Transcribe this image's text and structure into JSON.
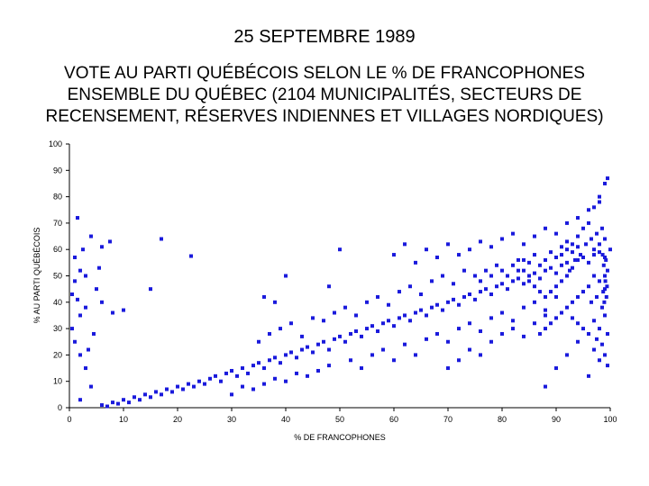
{
  "header": {
    "date": "25 SEPTEMBRE 1989",
    "title_lines": [
      "VOTE AU PARTI QUÉBÉCOIS SELON LE % DE FRANCOPHONES",
      "ENSEMBLE DU QUÉBEC (2104 MUNICIPALITÉS, SECTEURS DE",
      "RECENSEMENT, RÉSERVES INDIENNES ET VILLAGES NORDIQUES)"
    ]
  },
  "chart_data": {
    "type": "scatter",
    "title": "VOTE AU PARTI QUÉBÉCOIS SELON LE % DE FRANCOPHONES",
    "xlabel": "% DE FRANCOPHONES",
    "ylabel": "% AU PARTI QUÉBÉCOIS",
    "xlim": [
      0,
      100
    ],
    "ylim": [
      0,
      100
    ],
    "xticks": [
      0,
      10,
      20,
      30,
      40,
      50,
      60,
      70,
      80,
      90,
      100
    ],
    "yticks": [
      0,
      10,
      20,
      30,
      40,
      50,
      60,
      70,
      80,
      90,
      100
    ],
    "grid": false,
    "marker_color": "#1a1adc",
    "points": [
      [
        1.5,
        72
      ],
      [
        4,
        65
      ],
      [
        6,
        61
      ],
      [
        7.5,
        63
      ],
      [
        5.5,
        53
      ],
      [
        2,
        52
      ],
      [
        1,
        57
      ],
      [
        3,
        50
      ],
      [
        2.5,
        60
      ],
      [
        1,
        48
      ],
      [
        0.5,
        43
      ],
      [
        1.5,
        41
      ],
      [
        3,
        38
      ],
      [
        2,
        35
      ],
      [
        0.5,
        30
      ],
      [
        1,
        25
      ],
      [
        2,
        20
      ],
      [
        3,
        15
      ],
      [
        4,
        8
      ],
      [
        2,
        3
      ],
      [
        5,
        45
      ],
      [
        6,
        40
      ],
      [
        4.5,
        28
      ],
      [
        3.5,
        22
      ],
      [
        8,
        36
      ],
      [
        10,
        37
      ],
      [
        15,
        45
      ],
      [
        17,
        64
      ],
      [
        22.5,
        57.5
      ],
      [
        6,
        1
      ],
      [
        7,
        0.5
      ],
      [
        8,
        2
      ],
      [
        9,
        1.5
      ],
      [
        10,
        3
      ],
      [
        11,
        2
      ],
      [
        12,
        4
      ],
      [
        13,
        3
      ],
      [
        14,
        5
      ],
      [
        15,
        4
      ],
      [
        16,
        6
      ],
      [
        17,
        5
      ],
      [
        18,
        7
      ],
      [
        19,
        6
      ],
      [
        20,
        8
      ],
      [
        21,
        7
      ],
      [
        22,
        9
      ],
      [
        23,
        8
      ],
      [
        24,
        10
      ],
      [
        25,
        9
      ],
      [
        26,
        11
      ],
      [
        27,
        12
      ],
      [
        28,
        10
      ],
      [
        29,
        13
      ],
      [
        30,
        14
      ],
      [
        31,
        12
      ],
      [
        32,
        15
      ],
      [
        33,
        13
      ],
      [
        34,
        16
      ],
      [
        35,
        17
      ],
      [
        36,
        15
      ],
      [
        37,
        18
      ],
      [
        38,
        19
      ],
      [
        39,
        17
      ],
      [
        40,
        20
      ],
      [
        41,
        21
      ],
      [
        42,
        19
      ],
      [
        43,
        22
      ],
      [
        44,
        23
      ],
      [
        45,
        21
      ],
      [
        46,
        24
      ],
      [
        47,
        25
      ],
      [
        48,
        22
      ],
      [
        49,
        26
      ],
      [
        50,
        27
      ],
      [
        51,
        25
      ],
      [
        52,
        28
      ],
      [
        53,
        29
      ],
      [
        54,
        27
      ],
      [
        55,
        30
      ],
      [
        56,
        31
      ],
      [
        57,
        29
      ],
      [
        58,
        32
      ],
      [
        59,
        33
      ],
      [
        60,
        31
      ],
      [
        61,
        34
      ],
      [
        62,
        35
      ],
      [
        63,
        33
      ],
      [
        64,
        36
      ],
      [
        65,
        37
      ],
      [
        66,
        35
      ],
      [
        67,
        38
      ],
      [
        68,
        39
      ],
      [
        69,
        37
      ],
      [
        70,
        40
      ],
      [
        71,
        41
      ],
      [
        72,
        39
      ],
      [
        73,
        42
      ],
      [
        74,
        43
      ],
      [
        75,
        41
      ],
      [
        76,
        44
      ],
      [
        77,
        45
      ],
      [
        78,
        43
      ],
      [
        79,
        46
      ],
      [
        80,
        47
      ],
      [
        81,
        45
      ],
      [
        82,
        48
      ],
      [
        83,
        49
      ],
      [
        84,
        47
      ],
      [
        85,
        50
      ],
      [
        86,
        51
      ],
      [
        87,
        49
      ],
      [
        88,
        52
      ],
      [
        89,
        53
      ],
      [
        90,
        51
      ],
      [
        91,
        54
      ],
      [
        92,
        55
      ],
      [
        93,
        53
      ],
      [
        94,
        56
      ],
      [
        95,
        57
      ],
      [
        96,
        55
      ],
      [
        97,
        58
      ],
      [
        98,
        59
      ],
      [
        99,
        57
      ],
      [
        100,
        60
      ],
      [
        30,
        5
      ],
      [
        32,
        8
      ],
      [
        34,
        7
      ],
      [
        36,
        9
      ],
      [
        38,
        11
      ],
      [
        40,
        10
      ],
      [
        42,
        13
      ],
      [
        44,
        12
      ],
      [
        46,
        14
      ],
      [
        48,
        16
      ],
      [
        35,
        25
      ],
      [
        37,
        28
      ],
      [
        39,
        30
      ],
      [
        41,
        32
      ],
      [
        43,
        27
      ],
      [
        45,
        34
      ],
      [
        47,
        33
      ],
      [
        49,
        36
      ],
      [
        51,
        38
      ],
      [
        53,
        35
      ],
      [
        55,
        40
      ],
      [
        57,
        42
      ],
      [
        59,
        39
      ],
      [
        61,
        44
      ],
      [
        63,
        46
      ],
      [
        65,
        43
      ],
      [
        67,
        48
      ],
      [
        69,
        50
      ],
      [
        71,
        47
      ],
      [
        73,
        52
      ],
      [
        40,
        50
      ],
      [
        38,
        40
      ],
      [
        36,
        42
      ],
      [
        50,
        60
      ],
      [
        48,
        46
      ],
      [
        52,
        18
      ],
      [
        54,
        15
      ],
      [
        56,
        20
      ],
      [
        58,
        22
      ],
      [
        60,
        18
      ],
      [
        62,
        24
      ],
      [
        64,
        20
      ],
      [
        66,
        26
      ],
      [
        68,
        28
      ],
      [
        70,
        25
      ],
      [
        72,
        30
      ],
      [
        74,
        32
      ],
      [
        76,
        29
      ],
      [
        78,
        34
      ],
      [
        80,
        36
      ],
      [
        82,
        33
      ],
      [
        84,
        38
      ],
      [
        86,
        40
      ],
      [
        88,
        37
      ],
      [
        90,
        42
      ],
      [
        88,
        8
      ],
      [
        90,
        15
      ],
      [
        92,
        20
      ],
      [
        94,
        25
      ],
      [
        96,
        12
      ],
      [
        70,
        15
      ],
      [
        72,
        18
      ],
      [
        74,
        22
      ],
      [
        76,
        20
      ],
      [
        78,
        25
      ],
      [
        80,
        28
      ],
      [
        82,
        30
      ],
      [
        84,
        27
      ],
      [
        86,
        32
      ],
      [
        88,
        35
      ],
      [
        60,
        58
      ],
      [
        62,
        62
      ],
      [
        64,
        55
      ],
      [
        66,
        60
      ],
      [
        68,
        57
      ],
      [
        70,
        62
      ],
      [
        72,
        58
      ],
      [
        74,
        60
      ],
      [
        76,
        63
      ],
      [
        78,
        61
      ],
      [
        80,
        64
      ],
      [
        82,
        66
      ],
      [
        84,
        62
      ],
      [
        86,
        65
      ],
      [
        88,
        68
      ],
      [
        90,
        66
      ],
      [
        92,
        70
      ],
      [
        94,
        72
      ],
      [
        96,
        75
      ],
      [
        98,
        80
      ],
      [
        99,
        85
      ],
      [
        99.5,
        87
      ],
      [
        98,
        78
      ],
      [
        97,
        76
      ],
      [
        96,
        70
      ],
      [
        95,
        68
      ],
      [
        94,
        65
      ],
      [
        93,
        62
      ],
      [
        92,
        60
      ],
      [
        91,
        58
      ],
      [
        97,
        50
      ],
      [
        98,
        48
      ],
      [
        99,
        45
      ],
      [
        97.5,
        42
      ],
      [
        96.5,
        40
      ],
      [
        98.5,
        38
      ],
      [
        99,
        35
      ],
      [
        97,
        33
      ],
      [
        98,
        30
      ],
      [
        99.5,
        28
      ],
      [
        96,
        46
      ],
      [
        95,
        44
      ],
      [
        94,
        42
      ],
      [
        93,
        40
      ],
      [
        92,
        38
      ],
      [
        91,
        36
      ],
      [
        90,
        34
      ],
      [
        89,
        32
      ],
      [
        88,
        30
      ],
      [
        87,
        28
      ],
      [
        97,
        60
      ],
      [
        98,
        62
      ],
      [
        99,
        64
      ],
      [
        97.5,
        66
      ],
      [
        98.5,
        68
      ],
      [
        96.5,
        64
      ],
      [
        95.5,
        62
      ],
      [
        94.5,
        58
      ],
      [
        93.5,
        56
      ],
      [
        92.5,
        52
      ],
      [
        99,
        20
      ],
      [
        98,
        18
      ],
      [
        97,
        22
      ],
      [
        99.5,
        16
      ],
      [
        98.5,
        24
      ],
      [
        97.5,
        26
      ],
      [
        96,
        28
      ],
      [
        95,
        30
      ],
      [
        94,
        32
      ],
      [
        93,
        34
      ],
      [
        85,
        55
      ],
      [
        86,
        58
      ],
      [
        87,
        54
      ],
      [
        88,
        56
      ],
      [
        89,
        59
      ],
      [
        90,
        57
      ],
      [
        91,
        61
      ],
      [
        92,
        63
      ],
      [
        93,
        59
      ],
      [
        94,
        61
      ],
      [
        83,
        56
      ],
      [
        84,
        52
      ],
      [
        85,
        48
      ],
      [
        86,
        46
      ],
      [
        87,
        44
      ],
      [
        88,
        42
      ],
      [
        89,
        44
      ],
      [
        90,
        46
      ],
      [
        91,
        48
      ],
      [
        92,
        50
      ],
      [
        75,
        50
      ],
      [
        76,
        48
      ],
      [
        77,
        52
      ],
      [
        78,
        50
      ],
      [
        79,
        54
      ],
      [
        80,
        52
      ],
      [
        81,
        50
      ],
      [
        82,
        54
      ],
      [
        83,
        52
      ],
      [
        84,
        56
      ],
      [
        99,
        50
      ],
      [
        99.5,
        52
      ],
      [
        98.8,
        54
      ],
      [
        99.2,
        56
      ],
      [
        98.6,
        58
      ],
      [
        99.4,
        46
      ],
      [
        98.7,
        44
      ],
      [
        99.3,
        42
      ],
      [
        98.9,
        40
      ],
      [
        99.1,
        48
      ]
    ]
  }
}
